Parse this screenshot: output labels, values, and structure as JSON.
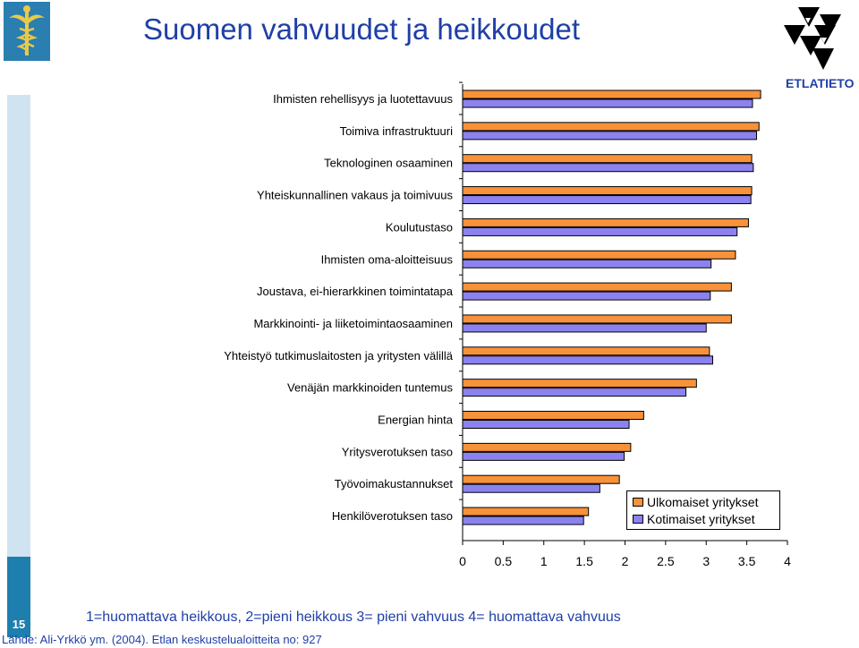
{
  "slide": {
    "title": "Suomen vahvuudet ja heikkoudet",
    "brand": "ETLATIETO",
    "page_number": "15",
    "scale_note": "1=huomattava heikkous, 2=pieni heikkous 3= pieni vahvuus 4= huomattava vahvuus",
    "source": "Lähde: Ali-Yrkkö ym. (2004). Etlan keskustelualoitteita no: 927"
  },
  "colors": {
    "series_foreign": "#f7923a",
    "series_domestic": "#8b82f0",
    "title": "#1f3fa8",
    "side_light": "#cfe4f0",
    "side_dark": "#1e7fae"
  },
  "chart_data": {
    "type": "bar",
    "orientation": "horizontal",
    "categories": [
      "Ihmisten rehellisyys ja luotettavuus",
      "Toimiva infrastruktuuri",
      "Teknologinen osaaminen",
      "Yhteiskunnallinen vakaus ja toimivuus",
      "Koulutustaso",
      "Ihmisten oma-aloitteisuus",
      "Joustava, ei-hierarkkinen toimintatapa",
      "Markkinointi- ja liiketoimintaosaaminen",
      "Yhteistyö tutkimuslaitosten ja yritysten välillä",
      "Venäjän markkinoiden tuntemus",
      "Energian hinta",
      "Yritysverotuksen taso",
      "Työvoimakustannukset",
      "Henkilöverotuksen taso"
    ],
    "series": [
      {
        "name": "Ulkomaiset yritykset",
        "values": [
          3.67,
          3.65,
          3.56,
          3.56,
          3.52,
          3.36,
          3.31,
          3.31,
          3.04,
          2.88,
          2.23,
          2.07,
          1.93,
          1.55
        ]
      },
      {
        "name": "Kotimaiset yritykset",
        "values": [
          3.57,
          3.62,
          3.58,
          3.55,
          3.38,
          3.06,
          3.05,
          3.0,
          3.08,
          2.75,
          2.05,
          1.99,
          1.69,
          1.49
        ]
      }
    ],
    "xlim": [
      0,
      4
    ],
    "xticks": [
      "0",
      "0.5",
      "1",
      "1.5",
      "2",
      "2.5",
      "3",
      "3.5",
      "4"
    ],
    "legend_position": "bottom-right",
    "grid": false
  }
}
